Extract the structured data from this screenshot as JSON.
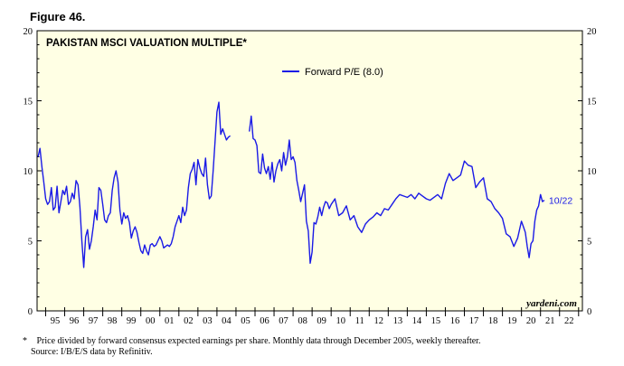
{
  "figure_label": "Figure 46.",
  "footnote_star": "*",
  "footnote_line1": "Price divided by forward consensus expected earnings per share. Monthly data through December 2005, weekly thereafter.",
  "footnote_line2": "Source: I/B/E/S data by Refinitiv.",
  "chart_data": {
    "type": "line",
    "title": "PAKISTAN MSCI VALUATION MULTIPLE*",
    "watermark": "yardeni.com",
    "ylim": [
      0,
      20
    ],
    "y_ticks": [
      0,
      5,
      10,
      15,
      20
    ],
    "y_tick_labels": [
      "0",
      "5",
      "10",
      "15",
      "20"
    ],
    "xlim": [
      1994.55,
      2023.2
    ],
    "x_tick_labels": [
      "95",
      "96",
      "97",
      "98",
      "99",
      "00",
      "01",
      "02",
      "03",
      "04",
      "05",
      "06",
      "07",
      "08",
      "09",
      "10",
      "11",
      "12",
      "13",
      "14",
      "15",
      "16",
      "17",
      "18",
      "19",
      "20",
      "21",
      "22"
    ],
    "x_tick_years": [
      1995,
      1996,
      1997,
      1998,
      1999,
      2000,
      2001,
      2002,
      2003,
      2004,
      2005,
      2006,
      2007,
      2008,
      2009,
      2010,
      2011,
      2012,
      2013,
      2014,
      2015,
      2016,
      2017,
      2018,
      2019,
      2020,
      2021,
      2022
    ],
    "grid": false,
    "legend_position": "top-center",
    "colors": {
      "series": "#1a1ae6",
      "plot_bg": "#ffffe4",
      "axis": "#000000"
    },
    "series": [
      {
        "name": "Forward P/E (8.0)",
        "end_label": "10/22",
        "segments": [
          {
            "x": [
              1994.6,
              1994.7,
              1994.8,
              1994.9,
              1995.0,
              1995.1,
              1995.2,
              1995.3,
              1995.4,
              1995.5,
              1995.6,
              1995.7,
              1995.8,
              1995.9,
              1996.0,
              1996.1,
              1996.2,
              1996.3,
              1996.4,
              1996.5,
              1996.6,
              1996.7,
              1996.8,
              1996.9,
              1997.0,
              1997.1,
              1997.2,
              1997.3,
              1997.4,
              1997.5,
              1997.6,
              1997.7,
              1997.8,
              1997.9,
              1998.0,
              1998.1,
              1998.2,
              1998.3,
              1998.4,
              1998.5,
              1998.6,
              1998.7,
              1998.8,
              1998.9,
              1999.0,
              1999.1,
              1999.2,
              1999.3,
              1999.4,
              1999.5,
              1999.6,
              1999.7,
              1999.8,
              1999.9,
              2000.0,
              2000.1,
              2000.2,
              2000.3,
              2000.4,
              2000.5,
              2000.6,
              2000.7,
              2000.8,
              2000.9,
              2001.0,
              2001.1,
              2001.2,
              2001.3,
              2001.4,
              2001.5,
              2001.6,
              2001.7,
              2001.8,
              2001.9,
              2002.0,
              2002.1,
              2002.2,
              2002.3,
              2002.4,
              2002.5,
              2002.6,
              2002.7,
              2002.8,
              2002.9,
              2003.0,
              2003.1,
              2003.2,
              2003.3,
              2003.4,
              2003.5,
              2003.6,
              2003.7,
              2003.8,
              2003.9,
              2004.0,
              2004.1,
              2004.2,
              2004.3,
              2004.4,
              2004.5,
              2004.6,
              2004.7
            ],
            "y": [
              11.0,
              11.6,
              10.3,
              9.2,
              8.0,
              7.6,
              7.8,
              8.8,
              7.2,
              7.4,
              8.9,
              7.0,
              7.8,
              8.6,
              8.3,
              8.9,
              7.6,
              7.8,
              8.4,
              8.0,
              9.3,
              9.0,
              7.4,
              5.0,
              3.1,
              5.3,
              5.8,
              4.4,
              5.0,
              6.0,
              7.2,
              6.5,
              8.8,
              8.6,
              7.6,
              6.5,
              6.3,
              6.8,
              7.0,
              8.6,
              9.5,
              10.0,
              9.2,
              7.2,
              6.2,
              7.0,
              6.6,
              6.8,
              6.3,
              5.2,
              5.7,
              6.0,
              5.6,
              4.9,
              4.3,
              4.1,
              4.7,
              4.3,
              4.0,
              4.7,
              4.8,
              4.6,
              4.7,
              5.0,
              5.3,
              5.0,
              4.5,
              4.6,
              4.7,
              4.6,
              4.8,
              5.3,
              6.0,
              6.4,
              6.8,
              6.3,
              7.4,
              6.8,
              7.2,
              8.8,
              9.8,
              10.1,
              10.6,
              9.0,
              10.8,
              10.2,
              9.8,
              9.6,
              10.9,
              9.0,
              8.0,
              8.2,
              10.0,
              12.1,
              14.2,
              14.9,
              12.6,
              13.0,
              12.6,
              12.2,
              12.4,
              12.5
            ]
          },
          {
            "x": [
              2005.7,
              2005.8,
              2005.9,
              2006.0,
              2006.1,
              2006.2,
              2006.3,
              2006.4,
              2006.5,
              2006.6,
              2006.7,
              2006.8,
              2006.9,
              2007.0,
              2007.1,
              2007.2,
              2007.3,
              2007.4,
              2007.5,
              2007.6,
              2007.7,
              2007.8,
              2007.9,
              2008.0,
              2008.1,
              2008.2,
              2008.3,
              2008.4,
              2008.5,
              2008.6,
              2008.7,
              2008.8,
              2008.9,
              2009.0,
              2009.1,
              2009.2,
              2009.3,
              2009.4,
              2009.5,
              2009.6,
              2009.7,
              2009.8,
              2009.9,
              2010.0,
              2010.2,
              2010.4,
              2010.6,
              2010.8,
              2011.0,
              2011.2,
              2011.4,
              2011.6,
              2011.8,
              2012.0,
              2012.2,
              2012.4,
              2012.6,
              2012.8,
              2013.0,
              2013.2,
              2013.4,
              2013.6,
              2013.8,
              2014.0,
              2014.2,
              2014.4,
              2014.6,
              2014.8,
              2015.0,
              2015.2,
              2015.4,
              2015.6,
              2015.8,
              2016.0,
              2016.2,
              2016.4,
              2016.6,
              2016.8,
              2017.0,
              2017.2,
              2017.4,
              2017.6,
              2017.8,
              2018.0,
              2018.2,
              2018.4,
              2018.6,
              2018.8,
              2019.0,
              2019.2,
              2019.4,
              2019.6,
              2019.8,
              2020.0,
              2020.1,
              2020.2,
              2020.3,
              2020.4,
              2020.5,
              2020.6,
              2020.7,
              2020.8,
              2020.9,
              2021.0,
              2021.1,
              2021.2
            ],
            "y": [
              12.8,
              13.9,
              12.3,
              12.2,
              11.8,
              9.9,
              9.8,
              11.2,
              10.2,
              9.8,
              10.3,
              9.4,
              10.6,
              9.2,
              10.0,
              10.5,
              10.8,
              10.0,
              11.3,
              10.4,
              11.0,
              12.2,
              10.8,
              11.0,
              10.6,
              9.3,
              8.6,
              7.8,
              8.4,
              9.0,
              6.4,
              5.7,
              3.4,
              4.2,
              6.3,
              6.2,
              6.7,
              7.4,
              6.8,
              7.4,
              7.8,
              7.7,
              7.3,
              7.6,
              8.0,
              6.8,
              7.0,
              7.5,
              6.5,
              6.8,
              6.0,
              5.6,
              6.2,
              6.5,
              6.7,
              7.0,
              6.8,
              7.3,
              7.2,
              7.6,
              8.0,
              8.3,
              8.2,
              8.1,
              8.3,
              8.0,
              8.4,
              8.2,
              8.0,
              7.9,
              8.1,
              8.3,
              8.0,
              9.1,
              9.8,
              9.3,
              9.5,
              9.7,
              10.7,
              10.4,
              10.3,
              8.8,
              9.2,
              9.5,
              8.0,
              7.8,
              7.3,
              7.0,
              6.6,
              5.5,
              5.3,
              4.6,
              5.2,
              6.4,
              6.0,
              5.6,
              4.6,
              3.8,
              4.8,
              5.0,
              6.4,
              7.2,
              7.5,
              8.3,
              7.8,
              7.9
            ]
          }
        ]
      }
    ]
  }
}
